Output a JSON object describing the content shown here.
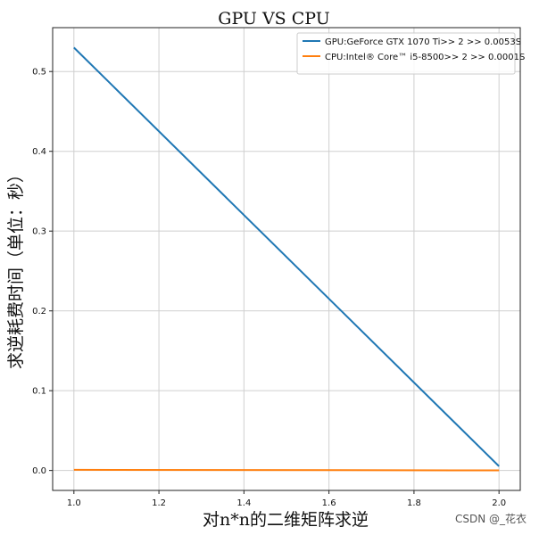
{
  "chart_data": {
    "type": "line",
    "title": "GPU VS CPU",
    "xlabel": "对n*n的二维矩阵求逆",
    "ylabel": "求逆耗费时间（单位：秒）",
    "xlim": [
      0.95,
      2.05
    ],
    "ylim": [
      -0.025,
      0.555
    ],
    "xticks": [
      1.0,
      1.2,
      1.4,
      1.6,
      1.8,
      2.0
    ],
    "xtick_labels": [
      "1.0",
      "1.2",
      "1.4",
      "1.6",
      "1.8",
      "2.0"
    ],
    "yticks": [
      0.0,
      0.1,
      0.2,
      0.3,
      0.4,
      0.5
    ],
    "ytick_labels": [
      "0.0",
      "0.1",
      "0.2",
      "0.3",
      "0.4",
      "0.5"
    ],
    "grid": true,
    "legend_position": "top-right",
    "x": [
      1,
      2
    ],
    "series": [
      {
        "name": "GPU:GeForce GTX 1070 Ti>> 2 >> 0.0053S",
        "values": [
          0.53,
          0.0053
        ],
        "color": "#1f77b4"
      },
      {
        "name": "CPU:Intel® Core™ i5-8500>> 2 >> 0.0001S",
        "values": [
          0.0008,
          0.0001
        ],
        "color": "#ff7f0e"
      }
    ]
  },
  "watermark": "CSDN @_花衣"
}
